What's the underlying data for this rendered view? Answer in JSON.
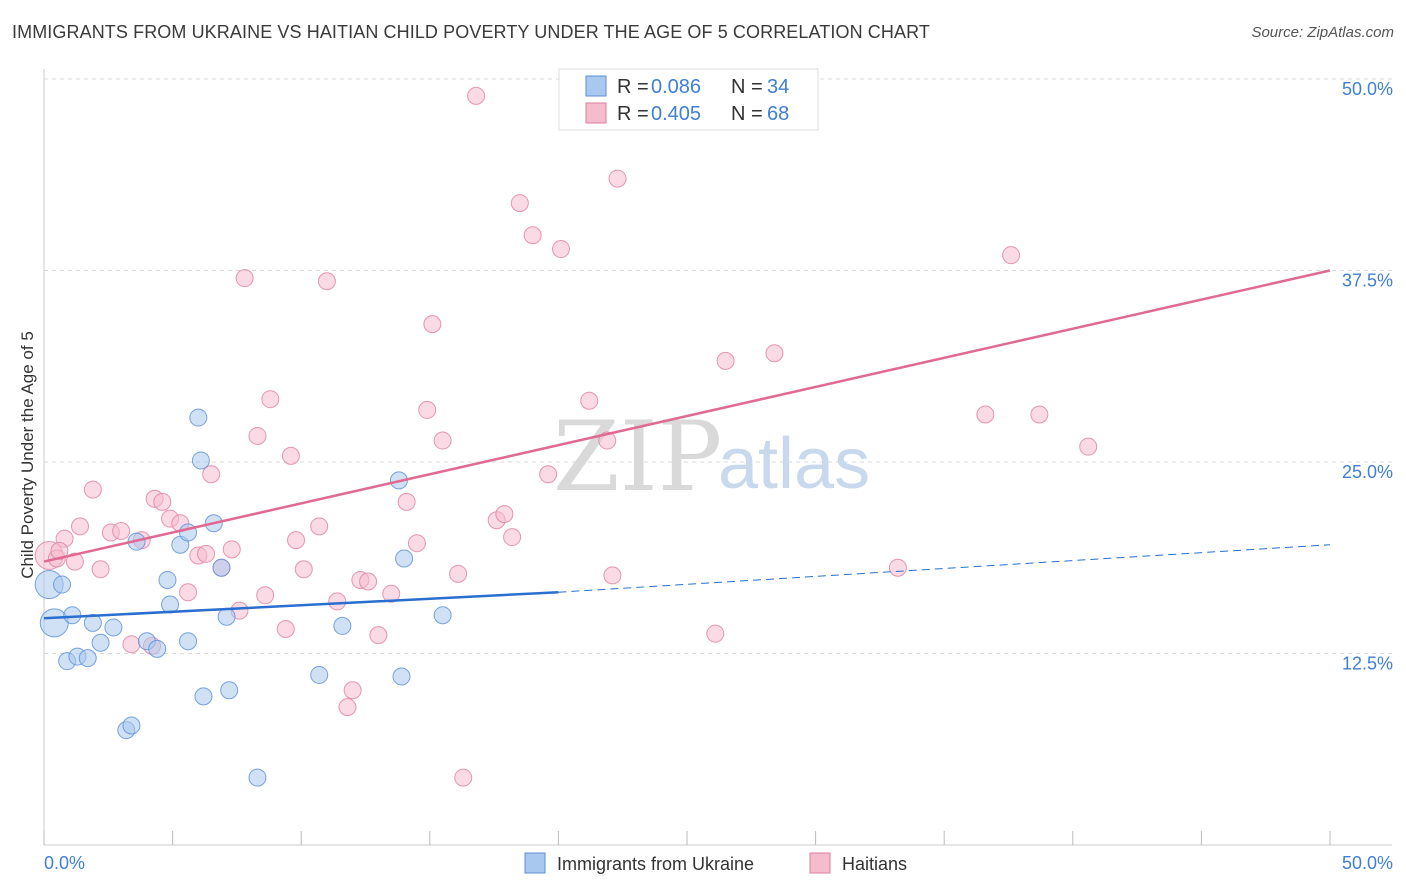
{
  "title": "IMMIGRANTS FROM UKRAINE VS HAITIAN CHILD POVERTY UNDER THE AGE OF 5 CORRELATION CHART",
  "source": "Source: ZipAtlas.com",
  "watermark": {
    "zip": "ZIP",
    "atlas": "atlas"
  },
  "legend": {
    "r_label": "R =",
    "n_label": "N =",
    "rows": [
      {
        "r": "0.086",
        "n": "34"
      },
      {
        "r": "0.405",
        "n": "68"
      }
    ]
  },
  "colors": {
    "blue_fill": "#a9c8ef",
    "blue_stroke": "#5a8fd6",
    "blue_line": "#2a6fcf",
    "pink_fill": "#f5bccd",
    "pink_stroke": "#e07f9f",
    "pink_line": "#e06a93",
    "tick": "#3f7fd4"
  },
  "chart_data": {
    "type": "scatter",
    "title": "IMMIGRANTS FROM UKRAINE VS HAITIAN CHILD POVERTY UNDER THE AGE OF 5 CORRELATION CHART",
    "xlabel": "",
    "ylabel": "Child Poverty Under the Age of 5",
    "xlim": [
      0,
      50
    ],
    "ylim": [
      0,
      50
    ],
    "x_tick_labels": [
      "0.0%",
      "50.0%"
    ],
    "y_ticks": [
      12.5,
      25.0,
      37.5,
      50.0
    ],
    "y_tick_labels": [
      "12.5%",
      "25.0%",
      "37.5%",
      "50.0%"
    ],
    "series": [
      {
        "name": "Immigrants from Ukraine",
        "color": "blue",
        "r": 0.086,
        "n": 34,
        "trend": {
          "x": [
            0,
            20
          ],
          "y": [
            14.8,
            16.5
          ],
          "dashed_to": [
            50,
            19.6
          ]
        },
        "points": [
          [
            0.2,
            17.0
          ],
          [
            0.4,
            14.5
          ],
          [
            0.7,
            17.0
          ],
          [
            0.9,
            12.0
          ],
          [
            1.1,
            15.0
          ],
          [
            1.3,
            12.3
          ],
          [
            1.7,
            12.2
          ],
          [
            1.9,
            14.5
          ],
          [
            2.2,
            13.2
          ],
          [
            2.7,
            14.2
          ],
          [
            3.2,
            7.5
          ],
          [
            3.4,
            7.8
          ],
          [
            3.6,
            19.8
          ],
          [
            4.0,
            13.3
          ],
          [
            4.4,
            12.8
          ],
          [
            4.8,
            17.3
          ],
          [
            4.9,
            15.7
          ],
          [
            5.3,
            19.6
          ],
          [
            5.6,
            20.4
          ],
          [
            5.6,
            13.3
          ],
          [
            6.0,
            27.9
          ],
          [
            6.1,
            25.1
          ],
          [
            6.2,
            9.7
          ],
          [
            6.6,
            21.0
          ],
          [
            6.9,
            18.1
          ],
          [
            7.1,
            14.9
          ],
          [
            7.2,
            10.1
          ],
          [
            8.3,
            4.4
          ],
          [
            10.7,
            11.1
          ],
          [
            11.6,
            14.3
          ],
          [
            13.8,
            23.8
          ],
          [
            13.9,
            11.0
          ],
          [
            14.0,
            18.7
          ],
          [
            15.5,
            15.0
          ]
        ]
      },
      {
        "name": "Haitians",
        "color": "pink",
        "r": 0.405,
        "n": 68,
        "trend": {
          "x": [
            0,
            50
          ],
          "y": [
            18.5,
            37.5
          ]
        },
        "points": [
          [
            0.2,
            18.9
          ],
          [
            0.5,
            18.7
          ],
          [
            0.8,
            20.0
          ],
          [
            1.2,
            18.5
          ],
          [
            1.4,
            20.8
          ],
          [
            1.9,
            23.2
          ],
          [
            2.2,
            18.0
          ],
          [
            2.6,
            20.4
          ],
          [
            3.0,
            20.5
          ],
          [
            3.4,
            13.1
          ],
          [
            3.8,
            19.9
          ],
          [
            4.2,
            13.0
          ],
          [
            4.3,
            22.6
          ],
          [
            4.6,
            22.4
          ],
          [
            4.9,
            21.3
          ],
          [
            5.3,
            21.0
          ],
          [
            5.6,
            16.5
          ],
          [
            6.0,
            18.9
          ],
          [
            6.3,
            19.0
          ],
          [
            6.5,
            24.2
          ],
          [
            6.9,
            18.1
          ],
          [
            7.3,
            19.3
          ],
          [
            7.6,
            15.3
          ],
          [
            7.8,
            37.0
          ],
          [
            8.3,
            26.7
          ],
          [
            8.6,
            16.3
          ],
          [
            8.8,
            29.1
          ],
          [
            9.4,
            14.1
          ],
          [
            9.6,
            25.4
          ],
          [
            9.8,
            19.9
          ],
          [
            10.1,
            18.0
          ],
          [
            10.7,
            20.8
          ],
          [
            11.0,
            36.8
          ],
          [
            11.4,
            15.9
          ],
          [
            11.8,
            9.0
          ],
          [
            12.0,
            10.1
          ],
          [
            12.3,
            17.3
          ],
          [
            12.6,
            17.2
          ],
          [
            13.0,
            13.7
          ],
          [
            13.5,
            16.4
          ],
          [
            14.1,
            22.4
          ],
          [
            14.5,
            19.7
          ],
          [
            14.9,
            28.4
          ],
          [
            15.1,
            34.0
          ],
          [
            15.5,
            26.4
          ],
          [
            16.1,
            17.7
          ],
          [
            16.3,
            4.4
          ],
          [
            16.8,
            48.9
          ],
          [
            17.6,
            21.2
          ],
          [
            17.9,
            21.6
          ],
          [
            18.2,
            20.1
          ],
          [
            18.5,
            41.9
          ],
          [
            19.0,
            39.8
          ],
          [
            19.6,
            24.2
          ],
          [
            20.1,
            38.9
          ],
          [
            21.2,
            29.0
          ],
          [
            21.9,
            26.4
          ],
          [
            22.1,
            17.6
          ],
          [
            22.3,
            43.5
          ],
          [
            26.1,
            13.8
          ],
          [
            26.5,
            31.6
          ],
          [
            28.4,
            32.1
          ],
          [
            33.2,
            18.1
          ],
          [
            36.6,
            28.1
          ],
          [
            37.6,
            38.5
          ],
          [
            38.7,
            28.1
          ],
          [
            40.6,
            26.0
          ],
          [
            0.6,
            19.2
          ]
        ]
      }
    ]
  },
  "bottom_legend": [
    "Immigrants from Ukraine",
    "Haitians"
  ]
}
